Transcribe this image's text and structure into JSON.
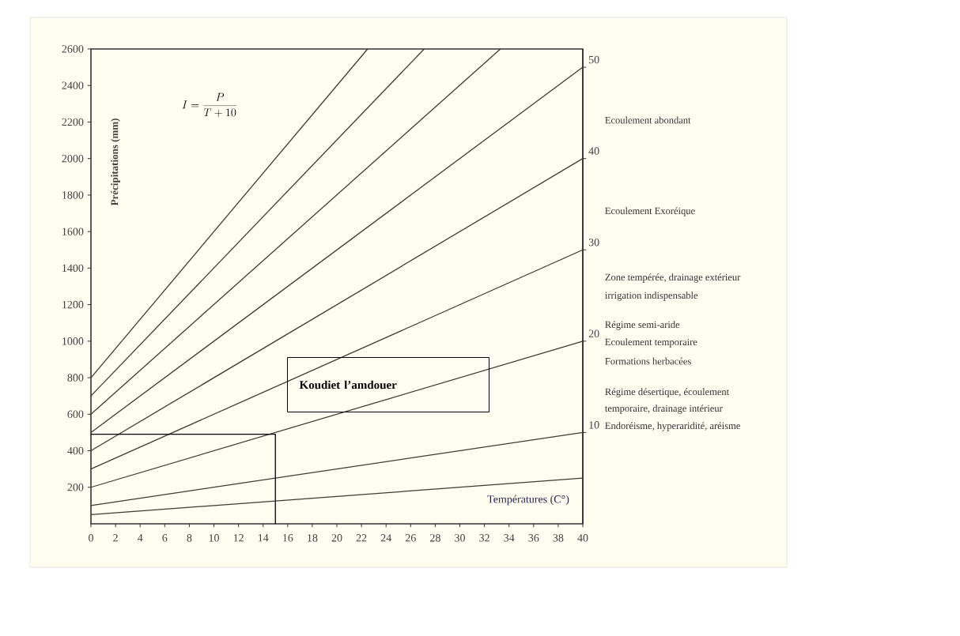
{
  "chart_data": {
    "type": "line",
    "xlabel": "Températures (C°)",
    "ylabel": "Précipitations (mm)",
    "xlim": [
      0,
      40
    ],
    "xticks": [
      0,
      2,
      4,
      6,
      8,
      10,
      12,
      14,
      16,
      18,
      20,
      22,
      24,
      26,
      28,
      30,
      32,
      34,
      36,
      38,
      40
    ],
    "ylim": [
      0,
      2600
    ],
    "yticks": [
      200,
      400,
      600,
      800,
      1000,
      1200,
      1400,
      1600,
      1800,
      2000,
      2200,
      2400,
      2600
    ],
    "y2lim": [
      0,
      52
    ],
    "y2ticks": [
      10,
      20,
      30,
      40,
      50
    ],
    "series": [
      {
        "color": "#3c3c30",
        "x": [
          0,
          40
        ],
        "values": [
          50,
          250
        ]
      },
      {
        "color": "#3c3c30",
        "x": [
          0,
          40
        ],
        "values": [
          100,
          500
        ]
      },
      {
        "color": "#3c3c30",
        "x": [
          0,
          40
        ],
        "values": [
          200,
          1000
        ]
      },
      {
        "color": "#3c3c30",
        "x": [
          0,
          40
        ],
        "values": [
          300,
          1500
        ]
      },
      {
        "color": "#3c3c30",
        "x": [
          0,
          40
        ],
        "values": [
          400,
          2000
        ]
      },
      {
        "color": "#3c3c30",
        "x": [
          0,
          40
        ],
        "values": [
          500,
          2500
        ]
      },
      {
        "color": "#3c3c30",
        "x": [
          0,
          33.3
        ],
        "values": [
          600,
          2600
        ]
      },
      {
        "color": "#3c3c30",
        "x": [
          0,
          27.1
        ],
        "values": [
          700,
          2600
        ]
      },
      {
        "color": "#3c3c30",
        "x": [
          0,
          22.5
        ],
        "values": [
          800,
          2600
        ]
      },
      {
        "color": "#000000",
        "x": [
          0,
          15,
          15
        ],
        "values": [
          490,
          490,
          0
        ]
      }
    ],
    "annotations": [
      "I = \\frac{P}{T+10}",
      "Koudiet l’amdouer",
      "Ecoulement abondant",
      "Ecoulement Exoréique",
      "Zone tempérée, drainage extérieur",
      "irrigation indispensable",
      "Régime semi-aride",
      "Ecoulement temporaire",
      "Formations herbacées",
      "Régime désertique, écoulement",
      "temporaire, drainage intérieur",
      "Endoréisme, hyperaridité, aréisme"
    ]
  }
}
